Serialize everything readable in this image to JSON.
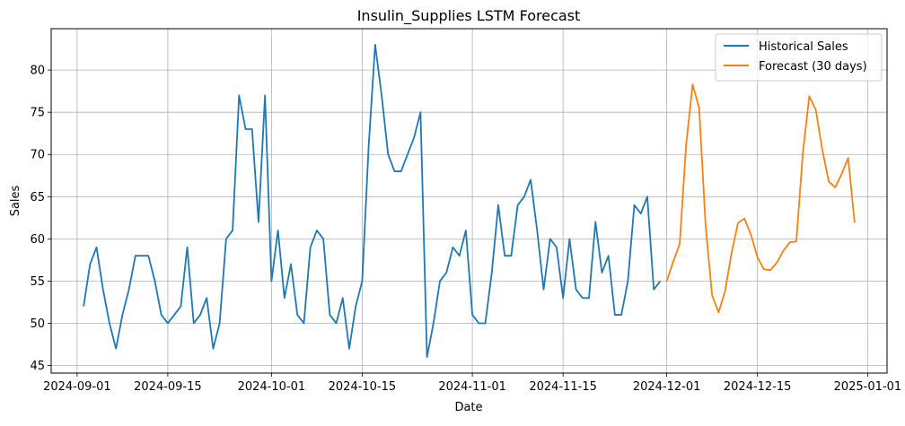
{
  "chart_data": {
    "type": "line",
    "title": "Insulin_Supplies LSTM Forecast",
    "xlabel": "Date",
    "ylabel": "Sales",
    "x_range": [
      "2024-08-28",
      "2025-01-04"
    ],
    "ylim": [
      44.1,
      84.9
    ],
    "grid": true,
    "legend_position": "top-right",
    "x_ticks": [
      "2024-09-01",
      "2024-09-15",
      "2024-10-01",
      "2024-10-15",
      "2024-11-01",
      "2024-11-15",
      "2024-12-01",
      "2024-12-15",
      "2025-01-01"
    ],
    "y_ticks": [
      45,
      50,
      55,
      60,
      65,
      70,
      75,
      80
    ],
    "series": [
      {
        "name": "Historical Sales",
        "color": "#1f77b4",
        "start_date": "2024-09-02",
        "values": [
          52,
          57,
          59,
          54,
          50,
          47,
          51,
          54,
          58,
          58,
          58,
          55,
          51,
          50,
          51,
          52,
          59,
          50,
          51,
          53,
          47,
          50,
          60,
          61,
          77,
          73,
          73,
          62,
          77,
          55,
          61,
          53,
          57,
          51,
          50,
          59,
          61,
          60,
          51,
          50,
          53,
          47,
          52,
          55,
          71,
          83,
          77,
          70,
          68,
          68,
          70,
          72,
          75,
          46,
          50,
          55,
          56,
          59,
          58,
          61,
          51,
          50,
          50,
          56,
          64,
          58,
          58,
          64,
          65,
          67,
          61,
          54,
          60,
          59,
          53,
          60,
          54,
          53,
          53,
          62,
          56,
          58,
          51,
          51,
          55,
          64,
          63,
          65,
          54,
          55
        ]
      },
      {
        "name": "Forecast (30 days)",
        "color": "#ff7f0e",
        "start_date": "2024-12-01",
        "values": [
          55,
          57.3,
          59.4,
          71.2,
          78.3,
          75.5,
          61.6,
          53.3,
          51.3,
          53.8,
          58.3,
          61.9,
          62.4,
          60.5,
          57.8,
          56.4,
          56.3,
          57.2,
          58.6,
          59.6,
          59.7,
          70.1,
          76.9,
          75.3,
          70.6,
          66.8,
          66.1,
          67.7,
          69.6,
          61.9
        ]
      }
    ]
  }
}
